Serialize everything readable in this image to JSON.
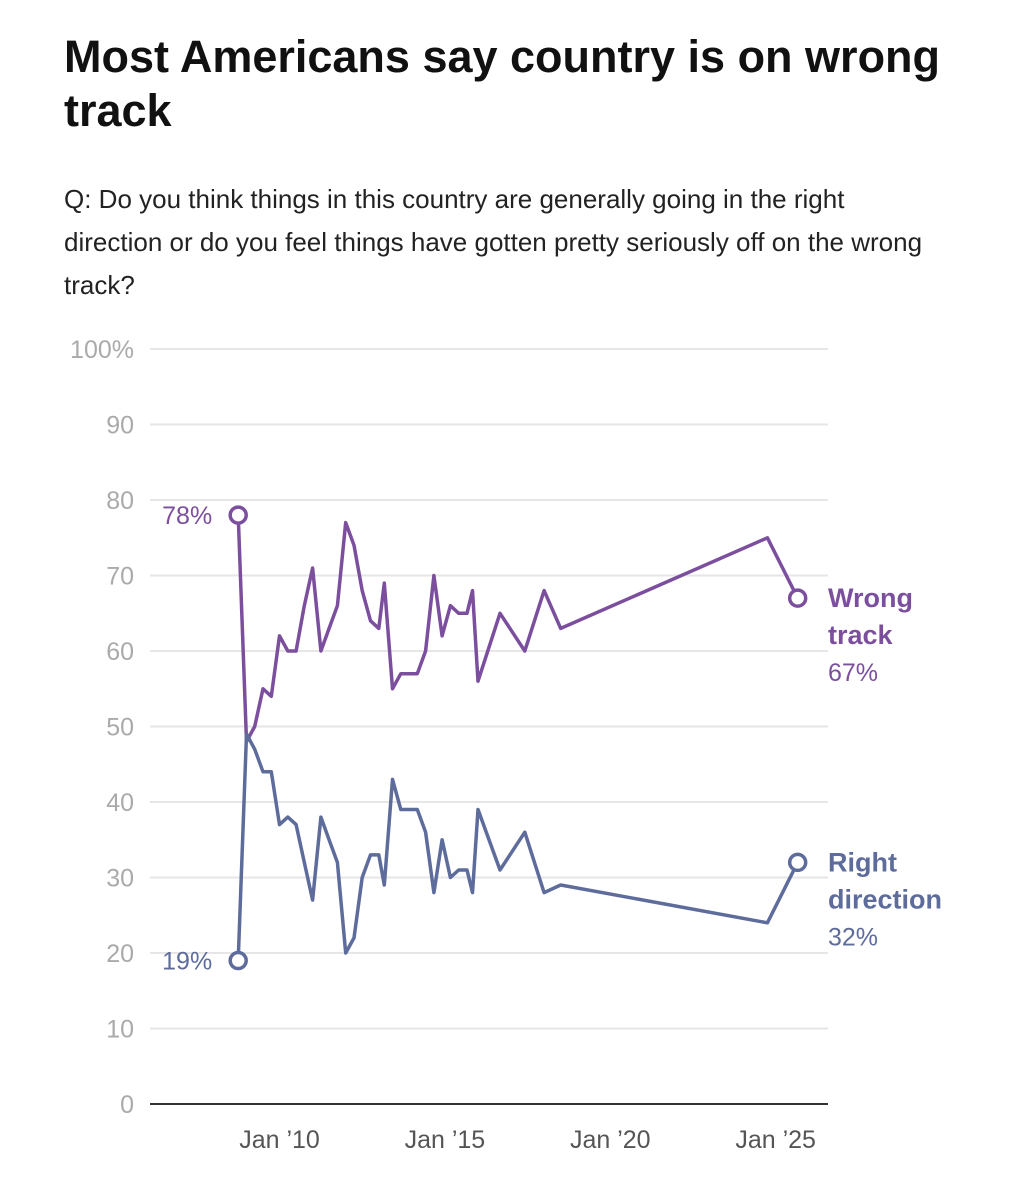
{
  "chart_data": {
    "type": "line",
    "title": "Most Americans say country is on wrong track",
    "subtitle": "Q: Do you think things in this country are generally going in the right direction or do you feel things have gotten pretty seriously off on the wrong track?",
    "ylim": [
      0,
      100
    ],
    "y_ticks": [
      {
        "value": 100,
        "label": "100%"
      },
      {
        "value": 90,
        "label": "90"
      },
      {
        "value": 80,
        "label": "80"
      },
      {
        "value": 70,
        "label": "70"
      },
      {
        "value": 60,
        "label": "60"
      },
      {
        "value": 50,
        "label": "50"
      },
      {
        "value": 40,
        "label": "40"
      },
      {
        "value": 30,
        "label": "30"
      },
      {
        "value": 20,
        "label": "20"
      },
      {
        "value": 10,
        "label": "10"
      },
      {
        "value": 0,
        "label": "0"
      }
    ],
    "xlim": [
      "2006-02",
      "2026-08"
    ],
    "x_ticks": [
      {
        "value": "2010-01",
        "label": "Jan ’10"
      },
      {
        "value": "2015-01",
        "label": "Jan ’15"
      },
      {
        "value": "2020-01",
        "label": "Jan ’20"
      },
      {
        "value": "2025-01",
        "label": "Jan ’25"
      }
    ],
    "grid": true,
    "series": [
      {
        "name": "Wrong track",
        "color": "#7b4f9e",
        "end_label": [
          "Wrong",
          "track"
        ],
        "start_value_label": "78%",
        "end_value_label": "67%",
        "points": [
          [
            "2008-10",
            78
          ],
          [
            "2009-01",
            48
          ],
          [
            "2009-04",
            50
          ],
          [
            "2009-07",
            55
          ],
          [
            "2009-10",
            54
          ],
          [
            "2010-01",
            62
          ],
          [
            "2010-04",
            60
          ],
          [
            "2010-07",
            60
          ],
          [
            "2010-10",
            66
          ],
          [
            "2011-01",
            71
          ],
          [
            "2011-04",
            60
          ],
          [
            "2011-07",
            63
          ],
          [
            "2011-10",
            66
          ],
          [
            "2012-01",
            77
          ],
          [
            "2012-04",
            74
          ],
          [
            "2012-07",
            68
          ],
          [
            "2012-10",
            64
          ],
          [
            "2013-01",
            63
          ],
          [
            "2013-03",
            69
          ],
          [
            "2013-06",
            55
          ],
          [
            "2013-09",
            57
          ],
          [
            "2013-12",
            57
          ],
          [
            "2014-03",
            57
          ],
          [
            "2014-06",
            60
          ],
          [
            "2014-09",
            70
          ],
          [
            "2014-12",
            62
          ],
          [
            "2015-03",
            66
          ],
          [
            "2015-06",
            65
          ],
          [
            "2015-09",
            65
          ],
          [
            "2015-11",
            68
          ],
          [
            "2016-01",
            56
          ],
          [
            "2016-09",
            65
          ],
          [
            "2017-06",
            60
          ],
          [
            "2018-01",
            68
          ],
          [
            "2018-07",
            63
          ],
          [
            "2024-10",
            75
          ],
          [
            "2025-09",
            67
          ]
        ]
      },
      {
        "name": "Right direction",
        "color": "#5e6c9c",
        "end_label": [
          "Right",
          "direction"
        ],
        "start_value_label": "19%",
        "end_value_label": "32%",
        "points": [
          [
            "2008-10",
            19
          ],
          [
            "2009-01",
            49
          ],
          [
            "2009-04",
            47
          ],
          [
            "2009-07",
            44
          ],
          [
            "2009-10",
            44
          ],
          [
            "2010-01",
            37
          ],
          [
            "2010-04",
            38
          ],
          [
            "2010-07",
            37
          ],
          [
            "2010-10",
            32
          ],
          [
            "2011-01",
            27
          ],
          [
            "2011-04",
            38
          ],
          [
            "2011-07",
            35
          ],
          [
            "2011-10",
            32
          ],
          [
            "2012-01",
            20
          ],
          [
            "2012-04",
            22
          ],
          [
            "2012-07",
            30
          ],
          [
            "2012-10",
            33
          ],
          [
            "2013-01",
            33
          ],
          [
            "2013-03",
            29
          ],
          [
            "2013-06",
            43
          ],
          [
            "2013-09",
            39
          ],
          [
            "2013-12",
            39
          ],
          [
            "2014-03",
            39
          ],
          [
            "2014-06",
            36
          ],
          [
            "2014-09",
            28
          ],
          [
            "2014-12",
            35
          ],
          [
            "2015-03",
            30
          ],
          [
            "2015-06",
            31
          ],
          [
            "2015-09",
            31
          ],
          [
            "2015-11",
            28
          ],
          [
            "2016-01",
            39
          ],
          [
            "2016-09",
            31
          ],
          [
            "2017-06",
            36
          ],
          [
            "2018-01",
            28
          ],
          [
            "2018-07",
            29
          ],
          [
            "2024-10",
            24
          ],
          [
            "2025-09",
            32
          ]
        ]
      }
    ]
  }
}
